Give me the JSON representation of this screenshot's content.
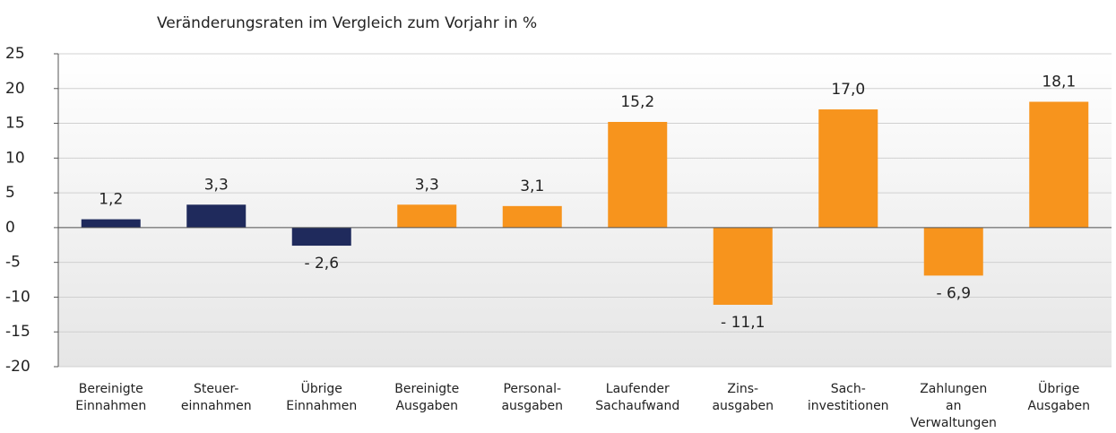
{
  "chart_data": {
    "type": "bar",
    "title": "Veränderungsraten im Vergleich zum Vorjahr in %",
    "categories": [
      [
        "Bereinigte",
        "Einnahmen"
      ],
      [
        "Steuer-",
        "einnahmen"
      ],
      [
        "Übrige",
        "Einnahmen"
      ],
      [
        "Bereinigte",
        "Ausgaben"
      ],
      [
        "Personal-",
        "ausgaben"
      ],
      [
        "Laufender",
        "Sachaufwand"
      ],
      [
        "Zins-",
        "ausgaben"
      ],
      [
        "Sach-",
        "investitionen"
      ],
      [
        "Zahlungen",
        "an",
        "Verwaltungen"
      ],
      [
        "Übrige",
        "Ausgaben"
      ]
    ],
    "values": [
      1.2,
      3.3,
      -2.6,
      3.3,
      3.1,
      15.2,
      -11.1,
      17.0,
      -6.9,
      18.1
    ],
    "value_labels": [
      "1,2",
      "3,3",
      "- 2,6",
      "3,3",
      "3,1",
      "15,2",
      "- 11,1",
      "17,0",
      "- 6,9",
      "18,1"
    ],
    "colors": [
      "#1f2a5c",
      "#1f2a5c",
      "#1f2a5c",
      "#f7941d",
      "#f7941d",
      "#f7941d",
      "#f7941d",
      "#f7941d",
      "#f7941d",
      "#f7941d"
    ],
    "ylim": [
      -20,
      25
    ],
    "yticks": [
      -20,
      -15,
      -10,
      -5,
      0,
      5,
      10,
      15,
      20,
      25
    ],
    "grid": true
  }
}
